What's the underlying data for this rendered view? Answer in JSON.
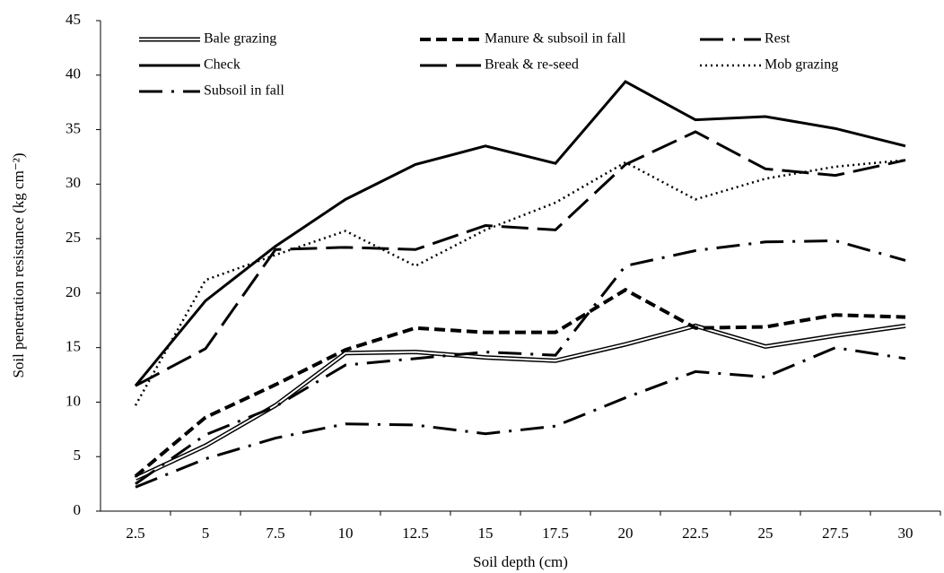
{
  "chart_data": {
    "type": "line",
    "x_label": "Soil depth (cm)",
    "y_label": "Soil penetration resistance (kg cm⁻²)",
    "categories": [
      "2.5",
      "5",
      "7.5",
      "10",
      "12.5",
      "15",
      "17.5",
      "20",
      "22.5",
      "25",
      "27.5",
      "30"
    ],
    "ylim": [
      0,
      45
    ],
    "yticks": [
      0,
      5,
      10,
      15,
      20,
      25,
      30,
      35,
      40,
      45
    ],
    "grid": false,
    "series": [
      {
        "name": "Bale grazing",
        "color": "#000000",
        "style": "double",
        "values": [
          3.0,
          6.0,
          9.7,
          14.5,
          14.6,
          14.1,
          13.8,
          15.3,
          17.0,
          15.1,
          16.1,
          17.0
        ]
      },
      {
        "name": "Manure & subsoil in fall",
        "color": "#000000",
        "style": "dashed",
        "values": [
          3.2,
          8.6,
          11.6,
          14.8,
          16.8,
          16.4,
          16.4,
          20.3,
          16.8,
          16.9,
          18.0,
          17.8
        ]
      },
      {
        "name": "Rest",
        "color": "#000000",
        "style": "dashdot",
        "values": [
          2.5,
          7.0,
          9.6,
          13.4,
          14.0,
          14.6,
          14.3,
          22.5,
          23.9,
          24.7,
          24.8,
          23.0
        ]
      },
      {
        "name": "Check",
        "color": "#000000",
        "style": "solid",
        "values": [
          11.5,
          19.3,
          24.3,
          28.6,
          31.8,
          33.5,
          31.9,
          39.4,
          35.9,
          36.2,
          35.1,
          33.5
        ]
      },
      {
        "name": "Break & re-seed",
        "color": "#000000",
        "style": "longdash",
        "values": [
          11.5,
          14.9,
          24.0,
          24.2,
          24.0,
          26.2,
          25.8,
          31.8,
          34.8,
          31.4,
          30.8,
          32.2
        ]
      },
      {
        "name": "Mob grazing",
        "color": "#000000",
        "style": "dotted",
        "values": [
          9.7,
          21.2,
          23.5,
          25.7,
          22.5,
          25.8,
          28.3,
          32.0,
          28.6,
          30.5,
          31.6,
          32.2
        ]
      },
      {
        "name": "Subsoil in fall",
        "color": "#000000",
        "style": "dashdot",
        "values": [
          2.2,
          4.8,
          6.7,
          8.0,
          7.9,
          7.1,
          7.8,
          10.4,
          12.8,
          12.3,
          15.0,
          14.0
        ]
      }
    ]
  }
}
